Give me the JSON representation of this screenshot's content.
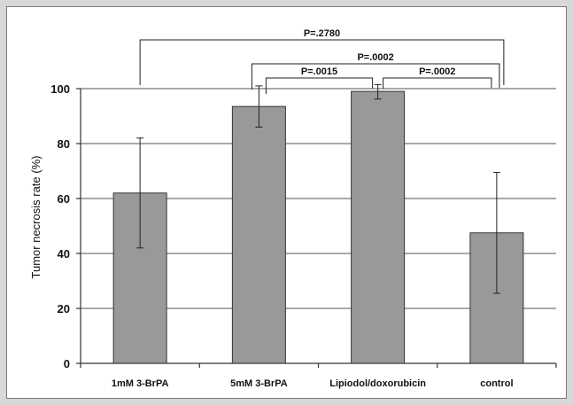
{
  "chart_data": {
    "type": "bar",
    "title": "",
    "xlabel": "",
    "ylabel": "Tumor necrosis rate (%)",
    "ylim": [
      0,
      100
    ],
    "yticks": [
      0,
      20,
      40,
      60,
      80,
      100
    ],
    "ytick_labels": [
      "0",
      "20",
      "40",
      "60",
      "80",
      "100"
    ],
    "grid": true,
    "categories": [
      "1mM 3-BrPA",
      "5mM 3-BrPA",
      "Lipiodol/doxorubicin",
      "control"
    ],
    "series": [
      {
        "values": [
          62,
          93.5,
          99,
          47.5
        ],
        "error": [
          20,
          7.5,
          2.8,
          22
        ]
      }
    ],
    "comparisons": [
      {
        "from": 0,
        "to": 3,
        "label": "P=.2780"
      },
      {
        "from": 1,
        "to": 3,
        "label": "P=.0002"
      },
      {
        "from": 1,
        "to": 2,
        "label": "P=.0015"
      },
      {
        "from": 2,
        "to": 3,
        "label": "P=.0002"
      }
    ],
    "colors": {
      "bar": "#999999",
      "bar_edge": "#333333",
      "grid": "#555555"
    }
  }
}
